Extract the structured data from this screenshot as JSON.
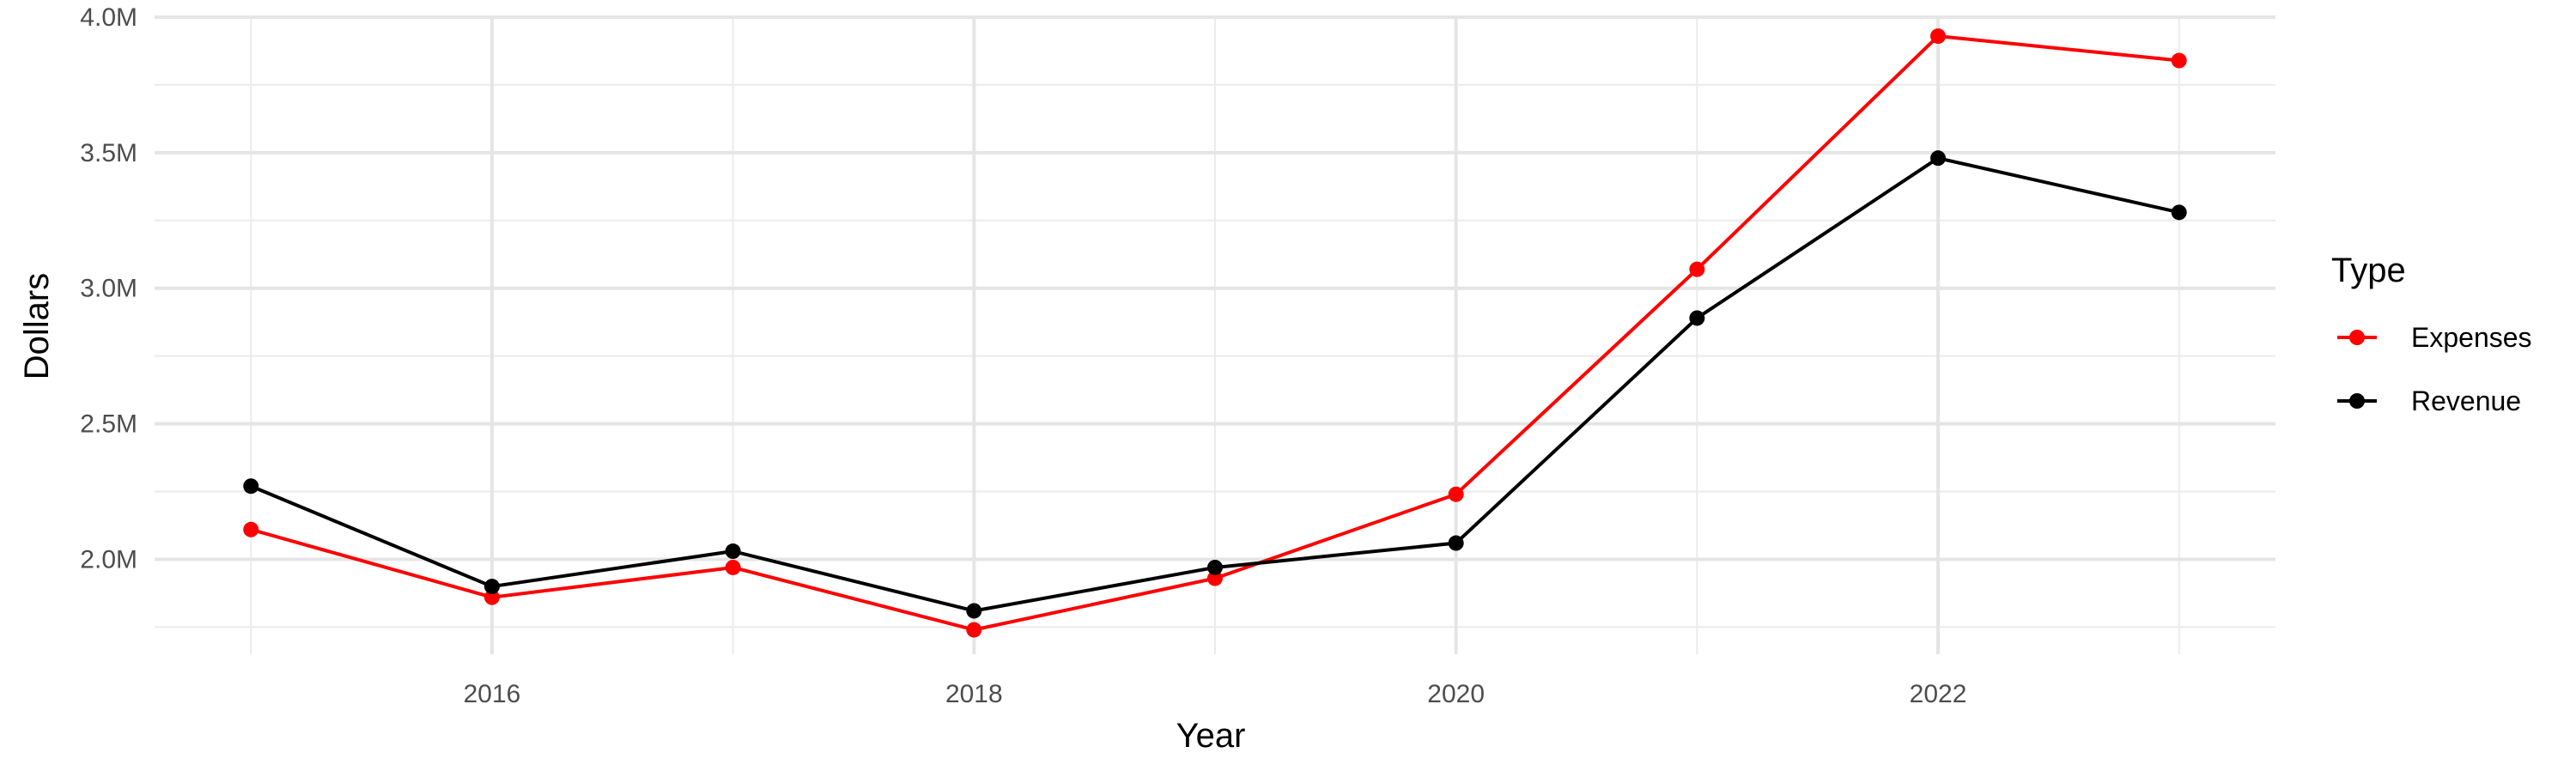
{
  "chart_data": {
    "type": "line",
    "title": "",
    "xlabel": "Year",
    "ylabel": "Dollars",
    "x": [
      2015,
      2016,
      2017,
      2018,
      2019,
      2020,
      2021,
      2022,
      2023
    ],
    "x_ticks": [
      2016,
      2018,
      2020,
      2022
    ],
    "x_tick_labels": [
      "2016",
      "2018",
      "2020",
      "2022"
    ],
    "xlim": [
      2014.6,
      2023.4
    ],
    "y_ticks": [
      2000000,
      2500000,
      3000000,
      3500000,
      4000000
    ],
    "y_tick_labels": [
      "2.0M",
      "2.5M",
      "3.0M",
      "3.5M",
      "4.0M"
    ],
    "ylim": [
      1650000,
      4000000
    ],
    "grid": true,
    "legend": {
      "title": "Type",
      "placement": "right"
    },
    "series": [
      {
        "name": "Expenses",
        "color": "#ff0000",
        "values": [
          2110000,
          1860000,
          1970000,
          1740000,
          1930000,
          2240000,
          3070000,
          3930000,
          3840000
        ]
      },
      {
        "name": "Revenue",
        "color": "#000000",
        "values": [
          2270000,
          1900000,
          2030000,
          1810000,
          1970000,
          2060000,
          2890000,
          3480000,
          3280000
        ]
      }
    ]
  }
}
